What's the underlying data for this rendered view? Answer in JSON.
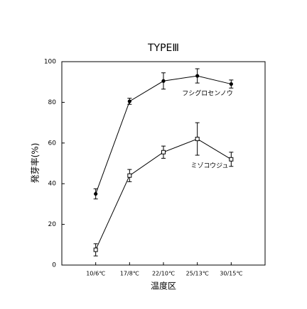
{
  "chart_data": {
    "type": "line",
    "title": "TYPEⅢ",
    "x_label": "温度区",
    "y_label": "発芽率(%)",
    "categories": [
      "10/6℃",
      "17/8℃",
      "22/10℃",
      "25/13℃",
      "30/15℃"
    ],
    "series": [
      {
        "name": "フシグロセンノウ",
        "color": "#000000",
        "marker": "filled-circle",
        "values": [
          35,
          80.5,
          90.5,
          93,
          89
        ],
        "errors": [
          2.5,
          1.5,
          4,
          3.5,
          2
        ]
      },
      {
        "name": "ミゾコウジュ",
        "color": "#000000",
        "marker": "open-square",
        "values": [
          7.5,
          44,
          55.5,
          62,
          52
        ],
        "errors": [
          3,
          3,
          3,
          8,
          3.5
        ]
      }
    ],
    "ylim": [
      0,
      100
    ],
    "yticks": [
      0,
      20,
      40,
      60,
      80,
      100
    ],
    "grid": false
  }
}
